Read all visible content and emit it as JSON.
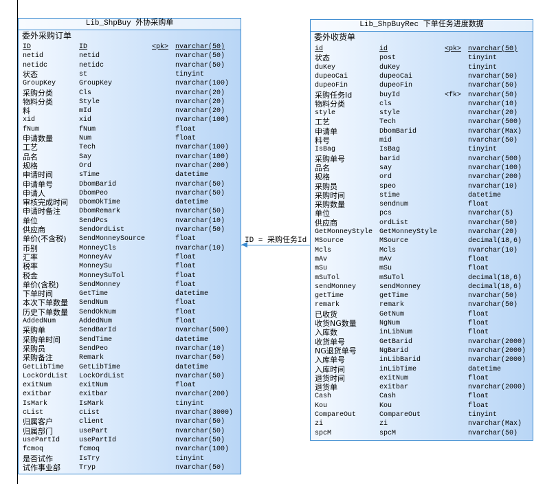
{
  "colors": {
    "border": "#3a8ad0",
    "fill_light": "#f4f9ff",
    "fill_dark": "#b9d6f6",
    "connector": "#3a8ad0"
  },
  "tables": [
    {
      "title": "Lib_ShpBuy 外协采购单",
      "comment": "委外采购订单",
      "columns": [
        {
          "label": "ID",
          "code": "ID",
          "key": "<pk>",
          "type": "nvarchar(50)",
          "pk": true
        },
        {
          "label": "netid",
          "code": "netid",
          "key": "",
          "type": "nvarchar(50)"
        },
        {
          "label": "netidc",
          "code": "netidc",
          "key": "",
          "type": "nvarchar(50)"
        },
        {
          "label": "状态",
          "code": "st",
          "key": "",
          "type": "tinyint"
        },
        {
          "label": "GroupKey",
          "code": "GroupKey",
          "key": "",
          "type": "nvarchar(100)"
        },
        {
          "label": "采购分类",
          "code": "Cls",
          "key": "",
          "type": "nvarchar(20)"
        },
        {
          "label": "物料分类",
          "code": "Style",
          "key": "",
          "type": "nvarchar(20)"
        },
        {
          "label": "料",
          "code": "mId",
          "key": "",
          "type": "nvarchar(20)"
        },
        {
          "label": "xid",
          "code": "xid",
          "key": "",
          "type": "nvarchar(100)"
        },
        {
          "label": "fNum",
          "code": "fNum",
          "key": "",
          "type": "float"
        },
        {
          "label": "申请数量",
          "code": "Num",
          "key": "",
          "type": "float"
        },
        {
          "label": "工艺",
          "code": "Tech",
          "key": "",
          "type": "nvarchar(100)"
        },
        {
          "label": "品名",
          "code": "Say",
          "key": "",
          "type": "nvarchar(100)"
        },
        {
          "label": "规格",
          "code": "Ord",
          "key": "",
          "type": "nvarchar(200)"
        },
        {
          "label": "申请时间",
          "code": "sTime",
          "key": "",
          "type": "datetime"
        },
        {
          "label": "申请单号",
          "code": "DbomBarid",
          "key": "",
          "type": "nvarchar(50)"
        },
        {
          "label": "申请人",
          "code": "DbomPeo",
          "key": "",
          "type": "nvarchar(50)"
        },
        {
          "label": "审核完成时间",
          "code": "DbomOkTime",
          "key": "",
          "type": "datetime"
        },
        {
          "label": "申请时备注",
          "code": "DbomRemark",
          "key": "",
          "type": "nvarchar(50)"
        },
        {
          "label": "单位",
          "code": "SendPcs",
          "key": "",
          "type": "nvarchar(10)"
        },
        {
          "label": "供应商",
          "code": "SendOrdList",
          "key": "",
          "type": "nvarchar(50)"
        },
        {
          "label": "单价(不含税)",
          "code": "SendMonneySource",
          "key": "",
          "type": "float"
        },
        {
          "label": "币别",
          "code": "MonneyCls",
          "key": "",
          "type": "nvarchar(10)"
        },
        {
          "label": "汇率",
          "code": "MonneyAv",
          "key": "",
          "type": "float"
        },
        {
          "label": "税率",
          "code": "MonneySu",
          "key": "",
          "type": "float"
        },
        {
          "label": "税金",
          "code": "MonneySuTol",
          "key": "",
          "type": "float"
        },
        {
          "label": "单价(含税)",
          "code": "SendMonney",
          "key": "",
          "type": "float"
        },
        {
          "label": "下单时间",
          "code": "GetTime",
          "key": "",
          "type": "datetime"
        },
        {
          "label": "本次下单数量",
          "code": "SendNum",
          "key": "",
          "type": "float"
        },
        {
          "label": "历史下单数量",
          "code": "SendOkNum",
          "key": "",
          "type": "float"
        },
        {
          "label": "AddedNum",
          "code": "AddedNum",
          "key": "",
          "type": "float"
        },
        {
          "label": "采购单",
          "code": "SendBarId",
          "key": "",
          "type": "nvarchar(500)"
        },
        {
          "label": "采购单时间",
          "code": "SendTime",
          "key": "",
          "type": "datetime"
        },
        {
          "label": "采购员",
          "code": "SendPeo",
          "key": "",
          "type": "nvarchar(10)"
        },
        {
          "label": "采购备注",
          "code": "Remark",
          "key": "",
          "type": "nvarchar(50)"
        },
        {
          "label": "GetLibTime",
          "code": "GetLibTime",
          "key": "",
          "type": "datetime"
        },
        {
          "label": "LockOrdList",
          "code": "LockOrdList",
          "key": "",
          "type": "nvarchar(50)"
        },
        {
          "label": "exitNum",
          "code": "exitNum",
          "key": "",
          "type": "float"
        },
        {
          "label": "exitbar",
          "code": "exitbar",
          "key": "",
          "type": "nvarchar(200)"
        },
        {
          "label": "IsMark",
          "code": "IsMark",
          "key": "",
          "type": "tinyint"
        },
        {
          "label": "cList",
          "code": "cList",
          "key": "",
          "type": "nvarchar(3000)"
        },
        {
          "label": "归属客户",
          "code": "client",
          "key": "",
          "type": "nvarchar(50)"
        },
        {
          "label": "归属部门",
          "code": "usePart",
          "key": "",
          "type": "nvarchar(50)"
        },
        {
          "label": "usePartId",
          "code": "usePartId",
          "key": "",
          "type": "nvarchar(50)"
        },
        {
          "label": "fcmoq",
          "code": "fcmoq",
          "key": "",
          "type": "nvarchar(100)"
        },
        {
          "label": "是否试作",
          "code": "IsTry",
          "key": "",
          "type": "tinyint"
        },
        {
          "label": "试作事业部",
          "code": "Tryp",
          "key": "",
          "type": "nvarchar(50)"
        }
      ]
    },
    {
      "title": "Lib_ShpBuyRec 下单任务进度数据",
      "comment": "委外收货单",
      "columns": [
        {
          "label": "id",
          "code": "id",
          "key": "<pk>",
          "type": "nvarchar(50)",
          "pk": true
        },
        {
          "label": "状态",
          "code": "post",
          "key": "",
          "type": "tinyint"
        },
        {
          "label": "duKey",
          "code": "duKey",
          "key": "",
          "type": "tinyint"
        },
        {
          "label": "dupeoCai",
          "code": "dupeoCai",
          "key": "",
          "type": "nvarchar(50)"
        },
        {
          "label": "dupeoFin",
          "code": "dupeoFin",
          "key": "",
          "type": "nvarchar(50)"
        },
        {
          "label": "采购任务Id",
          "code": "buyId",
          "key": "<fk>",
          "type": "nvarchar(50)"
        },
        {
          "label": "物料分类",
          "code": "cls",
          "key": "",
          "type": "nvarchar(10)"
        },
        {
          "label": "style",
          "code": "style",
          "key": "",
          "type": "nvarchar(20)"
        },
        {
          "label": "工艺",
          "code": "Tech",
          "key": "",
          "type": "nvarchar(500)"
        },
        {
          "label": "申请单",
          "code": "DbomBarid",
          "key": "",
          "type": "nvarchar(Max)"
        },
        {
          "label": "料号",
          "code": "mid",
          "key": "",
          "type": "nvarchar(50)"
        },
        {
          "label": "IsBag",
          "code": "IsBag",
          "key": "",
          "type": "tinyint"
        },
        {
          "label": "采购单号",
          "code": "barid",
          "key": "",
          "type": "nvarchar(500)"
        },
        {
          "label": "品名",
          "code": "say",
          "key": "",
          "type": "nvarchar(100)"
        },
        {
          "label": "规格",
          "code": "ord",
          "key": "",
          "type": "nvarchar(200)"
        },
        {
          "label": "采购员",
          "code": "speo",
          "key": "",
          "type": "nvarchar(10)"
        },
        {
          "label": "采购时间",
          "code": "stime",
          "key": "",
          "type": "datetime"
        },
        {
          "label": "采购数量",
          "code": "sendnum",
          "key": "",
          "type": "float"
        },
        {
          "label": "单位",
          "code": "pcs",
          "key": "",
          "type": "nvarchar(5)"
        },
        {
          "label": "供应商",
          "code": "ordList",
          "key": "",
          "type": "nvarchar(50)"
        },
        {
          "label": "GetMonneyStyle",
          "code": "GetMonneyStyle",
          "key": "",
          "type": "nvarchar(20)"
        },
        {
          "label": "MSource",
          "code": "MSource",
          "key": "",
          "type": "decimal(18,6)"
        },
        {
          "label": "Mcls",
          "code": "Mcls",
          "key": "",
          "type": "nvarchar(10)"
        },
        {
          "label": "mAv",
          "code": "mAv",
          "key": "",
          "type": "float"
        },
        {
          "label": "mSu",
          "code": "mSu",
          "key": "",
          "type": "float"
        },
        {
          "label": "mSuTol",
          "code": "mSuTol",
          "key": "",
          "type": "decimal(18,6)"
        },
        {
          "label": "sendMonney",
          "code": "sendMonney",
          "key": "",
          "type": "decimal(18,6)"
        },
        {
          "label": "getTime",
          "code": "getTime",
          "key": "",
          "type": "nvarchar(50)"
        },
        {
          "label": "remark",
          "code": "remark",
          "key": "",
          "type": "nvarchar(50)"
        },
        {
          "label": "已收货",
          "code": "GetNum",
          "key": "",
          "type": "float"
        },
        {
          "label": "收货NG数量",
          "code": "NgNum",
          "key": "",
          "type": "float"
        },
        {
          "label": "入库数",
          "code": "inLibNum",
          "key": "",
          "type": "float"
        },
        {
          "label": "收货单号",
          "code": "GetBarid",
          "key": "",
          "type": "nvarchar(2000)"
        },
        {
          "label": "NG退货单号",
          "code": "NgBarid",
          "key": "",
          "type": "nvarchar(2000)"
        },
        {
          "label": "入库单号",
          "code": "inLibBarid",
          "key": "",
          "type": "nvarchar(2000)"
        },
        {
          "label": "入库时间",
          "code": "inLibTime",
          "key": "",
          "type": "datetime"
        },
        {
          "label": "退货时间",
          "code": "exitNum",
          "key": "",
          "type": "float"
        },
        {
          "label": "退货单",
          "code": "exitbar",
          "key": "",
          "type": "nvarchar(2000)"
        },
        {
          "label": "Cash",
          "code": "Cash",
          "key": "",
          "type": "float"
        },
        {
          "label": "Kou",
          "code": "Kou",
          "key": "",
          "type": "float"
        },
        {
          "label": "CompareOut",
          "code": "CompareOut",
          "key": "",
          "type": "tinyint"
        },
        {
          "label": "zi",
          "code": "zi",
          "key": "",
          "type": "nvarchar(Max)"
        },
        {
          "label": "spcM",
          "code": "spcM",
          "key": "",
          "type": "nvarchar(50)"
        }
      ]
    }
  ],
  "relationship": {
    "label": "ID = 采购任务Id"
  }
}
